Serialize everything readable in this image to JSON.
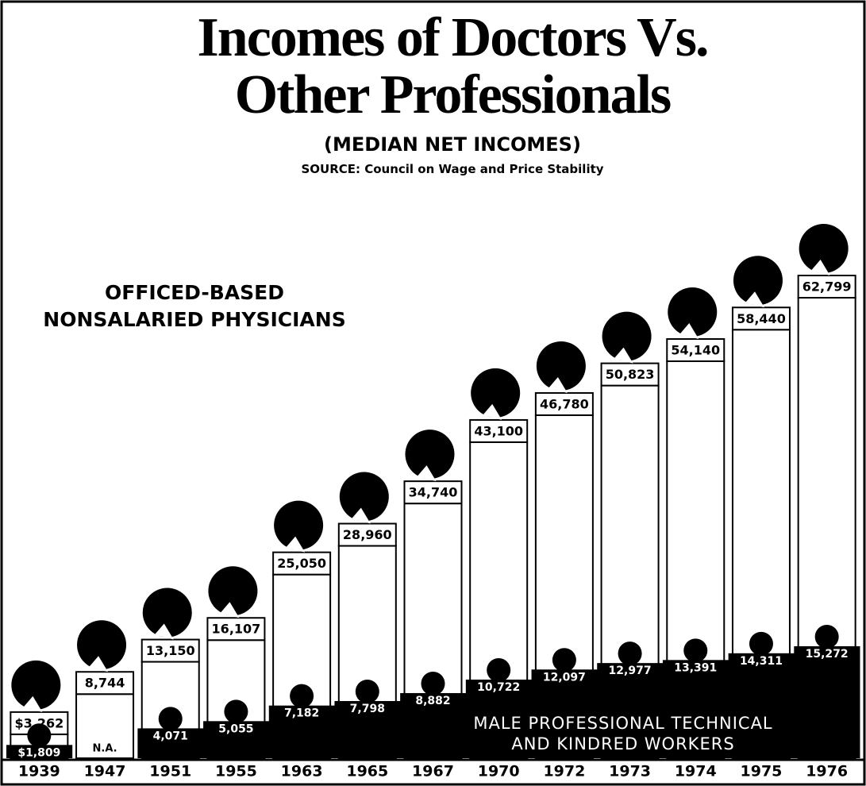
{
  "chart_data": {
    "type": "pictorial-bar",
    "title": "Incomes of Doctors Vs. Other Professionals",
    "subtitle": "(MEDIAN NET INCOMES)",
    "source": "SOURCE: Council on Wage and Price Stability",
    "categories": [
      "1939",
      "1947",
      "1951",
      "1955",
      "1963",
      "1965",
      "1967",
      "1970",
      "1972",
      "1973",
      "1974",
      "1975",
      "1976"
    ],
    "series": [
      {
        "name": "OFFICED-BASED NONSALARIED PHYSICIANS",
        "color": "#ffffff",
        "values": [
          3262,
          8744,
          13150,
          16107,
          25050,
          28960,
          34740,
          43100,
          46780,
          50823,
          54140,
          58440,
          62799
        ],
        "value_labels": [
          "$3,262",
          "8,744",
          "13,150",
          "16,107",
          "25,050",
          "28,960",
          "34,740",
          "43,100",
          "46,780",
          "50,823",
          "54,140",
          "58,440",
          "62,799"
        ]
      },
      {
        "name": "MALE PROFESSIONAL TECHNICAL AND KINDRED WORKERS",
        "color": "#000000",
        "values": [
          1809,
          null,
          4071,
          5055,
          7182,
          7798,
          8882,
          10722,
          12097,
          12977,
          13391,
          14311,
          15272
        ],
        "value_labels": [
          "$1,809",
          "N.A.",
          "4,071",
          "5,055",
          "7,182",
          "7,798",
          "8,882",
          "10,722",
          "12,097",
          "12,977",
          "13,391",
          "14,311",
          "15,272"
        ]
      }
    ]
  }
}
